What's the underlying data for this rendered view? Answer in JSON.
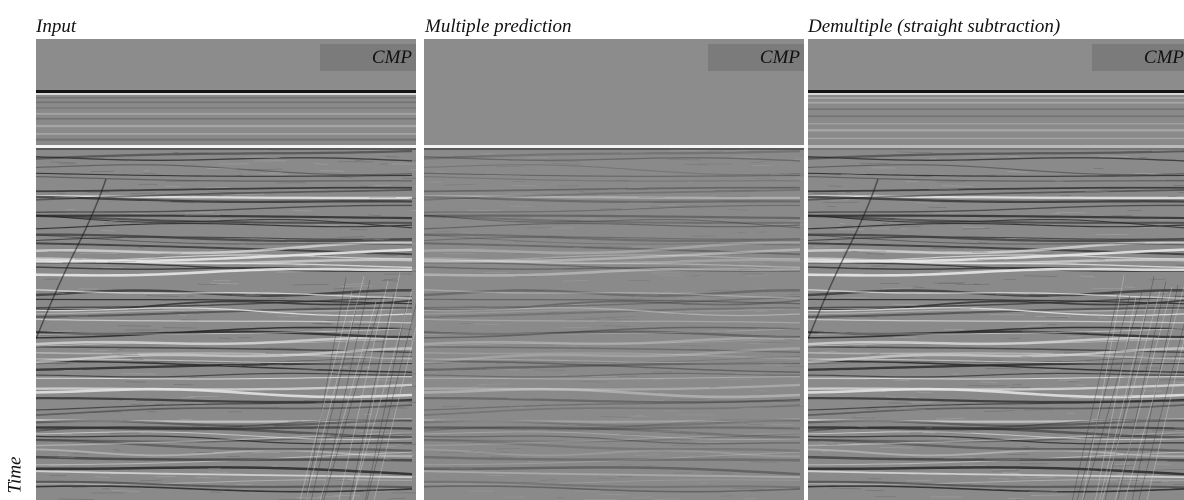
{
  "figure": {
    "panels": [
      {
        "title": "Input",
        "label": "CMP",
        "kind": "input"
      },
      {
        "title": "Multiple prediction",
        "label": "CMP",
        "kind": "prediction"
      },
      {
        "title": "Demultiple (straight subtraction)",
        "label": "CMP",
        "kind": "demultiple"
      }
    ],
    "y_axis_label": "Time",
    "colors": {
      "background_gray": "#8a8a8a",
      "water_column_gray": "#8c8c8c",
      "seafloor_dark": "#141414",
      "reflector_white": "#f4f4f4"
    }
  }
}
